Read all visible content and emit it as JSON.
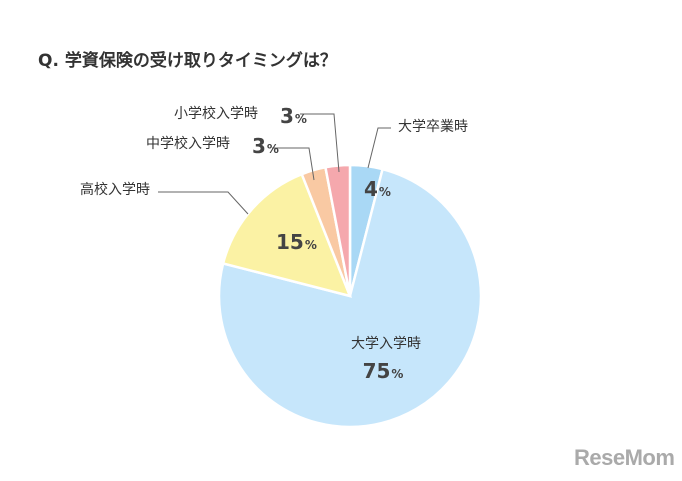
{
  "title": "Q. 学資保険の受け取りタイミングは？",
  "brand": "ReseMom",
  "chart_data": {
    "type": "pie",
    "title": "Q. 学資保険の受け取りタイミングは？",
    "unit": "%",
    "slices": [
      {
        "label": "大学卒業時",
        "value": 4,
        "color": "#a9d8f5"
      },
      {
        "label": "大学入学時",
        "value": 75,
        "color": "#c6e6fb"
      },
      {
        "label": "高校入学時",
        "value": 15,
        "color": "#fbf2a4"
      },
      {
        "label": "中学校入学時",
        "value": 3,
        "color": "#f9c9a3"
      },
      {
        "label": "小学校入学時",
        "value": 3,
        "color": "#f5a8ad"
      }
    ]
  }
}
